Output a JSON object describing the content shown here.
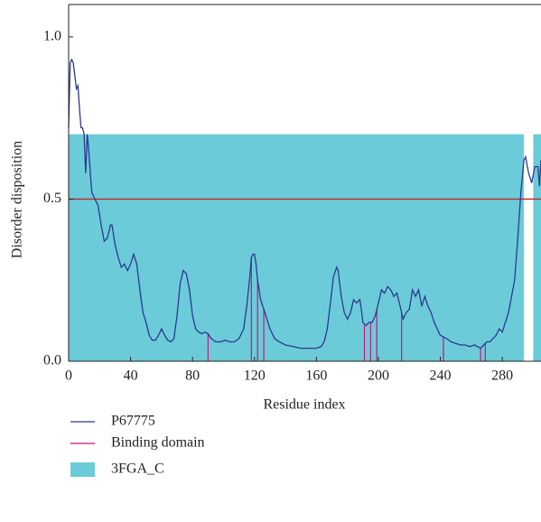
{
  "chart_data": {
    "type": "line",
    "x_label": "Residue index",
    "y_label": "Disorder disposition",
    "xlim": [
      0,
      305
    ],
    "ylim": [
      0,
      1.1
    ],
    "xticks": [
      0,
      40,
      80,
      120,
      160,
      200,
      240,
      280
    ],
    "yticks": [
      {
        "value": 0,
        "label": "0.0"
      },
      0.5,
      {
        "value": 1,
        "label": "1.0"
      }
    ],
    "threshold": {
      "value": 0.5,
      "color": "#c0272d"
    },
    "regions": {
      "name": "3FGA_C",
      "color": "#6ccbd8",
      "height": 0.7,
      "spans": [
        [
          0,
          294
        ],
        [
          300,
          305
        ]
      ]
    },
    "series": [
      {
        "name": "P67775",
        "color": "#2b3990",
        "x": [
          0,
          1,
          2,
          3,
          4,
          5,
          6,
          7,
          8,
          9,
          10,
          11,
          12,
          13,
          14,
          15,
          17,
          19,
          21,
          23,
          25,
          27,
          28,
          30,
          32,
          34,
          36,
          38,
          40,
          42,
          44,
          46,
          48,
          50,
          52,
          54,
          56,
          58,
          60,
          62,
          64,
          66,
          68,
          70,
          72,
          74,
          76,
          78,
          80,
          82,
          84,
          86,
          88,
          90,
          92,
          95,
          98,
          101,
          104,
          107,
          110,
          113,
          115,
          117,
          118,
          119,
          120,
          121,
          122,
          124,
          126,
          128,
          130,
          133,
          136,
          140,
          145,
          150,
          155,
          160,
          163,
          165,
          167,
          169,
          171,
          173,
          174,
          176,
          178,
          180,
          182,
          184,
          186,
          188,
          189,
          190,
          192,
          194,
          196,
          198,
          200,
          202,
          204,
          206,
          208,
          210,
          212,
          214,
          216,
          218,
          220,
          222,
          224,
          226,
          228,
          230,
          232,
          234,
          236,
          238,
          240,
          242,
          244,
          247,
          250,
          253,
          256,
          259,
          262,
          264,
          266,
          268,
          270,
          272,
          274,
          276,
          278,
          280,
          282,
          284,
          286,
          288,
          290,
          292,
          294,
          295,
          297,
          299,
          301,
          303,
          304,
          305
        ],
        "values": [
          0.72,
          0.92,
          0.93,
          0.92,
          0.88,
          0.84,
          0.85,
          0.78,
          0.72,
          0.72,
          0.7,
          0.58,
          0.7,
          0.65,
          0.58,
          0.52,
          0.5,
          0.48,
          0.42,
          0.37,
          0.38,
          0.42,
          0.42,
          0.36,
          0.32,
          0.29,
          0.3,
          0.28,
          0.3,
          0.33,
          0.3,
          0.22,
          0.15,
          0.12,
          0.08,
          0.065,
          0.065,
          0.08,
          0.1,
          0.08,
          0.065,
          0.06,
          0.07,
          0.14,
          0.24,
          0.28,
          0.27,
          0.22,
          0.14,
          0.1,
          0.09,
          0.085,
          0.09,
          0.085,
          0.07,
          0.06,
          0.06,
          0.065,
          0.06,
          0.06,
          0.07,
          0.1,
          0.17,
          0.26,
          0.32,
          0.33,
          0.33,
          0.3,
          0.25,
          0.19,
          0.16,
          0.13,
          0.1,
          0.07,
          0.06,
          0.05,
          0.045,
          0.04,
          0.04,
          0.04,
          0.045,
          0.06,
          0.1,
          0.18,
          0.26,
          0.29,
          0.28,
          0.2,
          0.15,
          0.13,
          0.15,
          0.19,
          0.18,
          0.19,
          0.16,
          0.12,
          0.11,
          0.12,
          0.12,
          0.14,
          0.18,
          0.22,
          0.21,
          0.23,
          0.22,
          0.2,
          0.21,
          0.17,
          0.13,
          0.15,
          0.16,
          0.22,
          0.2,
          0.22,
          0.17,
          0.2,
          0.17,
          0.15,
          0.12,
          0.1,
          0.08,
          0.075,
          0.07,
          0.06,
          0.055,
          0.05,
          0.05,
          0.045,
          0.05,
          0.045,
          0.04,
          0.05,
          0.06,
          0.06,
          0.07,
          0.08,
          0.1,
          0.09,
          0.12,
          0.15,
          0.2,
          0.25,
          0.38,
          0.52,
          0.62,
          0.63,
          0.58,
          0.55,
          0.6,
          0.6,
          0.54,
          0.62
        ]
      },
      {
        "name": "Binding domain",
        "color": "#c2187a",
        "x": [
          90,
          118,
          122,
          126,
          191,
          195,
          199,
          215,
          242,
          266,
          269
        ],
        "values": [
          0.085,
          0.32,
          0.25,
          0.16,
          0.11,
          0.12,
          0.16,
          0.15,
          0.075,
          0.04,
          0.055
        ]
      }
    ]
  }
}
